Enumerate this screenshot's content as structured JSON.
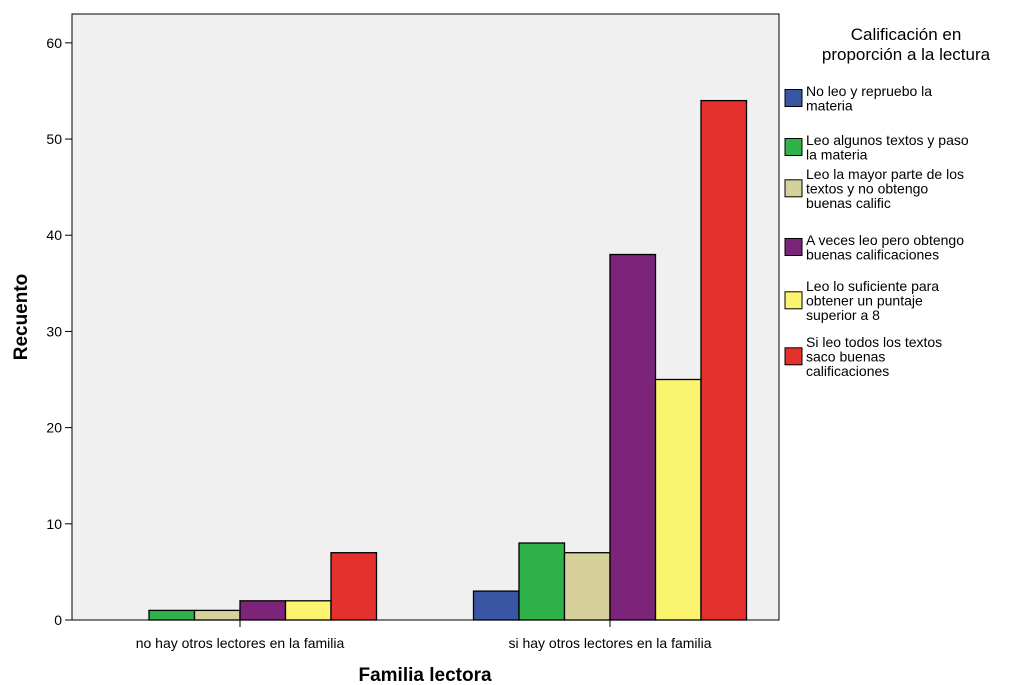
{
  "chart_data": {
    "type": "bar",
    "xlabel": "Familia lectora",
    "ylabel": "Recuento",
    "ylim": [
      0,
      63
    ],
    "yticks": [
      0,
      10,
      20,
      30,
      40,
      50,
      60
    ],
    "categories": [
      "no hay otros lectores en la familia",
      "si hay otros lectores en la familia"
    ],
    "legend": {
      "title_lines": [
        "Calificación en",
        "proporción a la lectura"
      ],
      "placement": "right"
    },
    "series": [
      {
        "name": "No leo y repruebo la materia",
        "label_lines": [
          "No leo y repruebo la",
          "materia"
        ],
        "color": "#3a55a4",
        "values": [
          0,
          3
        ]
      },
      {
        "name": "Leo algunos textos y paso la materia",
        "label_lines": [
          "Leo algunos textos y paso",
          "la materia"
        ],
        "color": "#2fb24a",
        "values": [
          1,
          8
        ]
      },
      {
        "name": "Leo la mayor parte de los textos y no obtengo buenas calific",
        "label_lines": [
          "Leo la mayor parte de los",
          "textos y no obtengo",
          "buenas calific"
        ],
        "color": "#d6d09a",
        "values": [
          1,
          7
        ]
      },
      {
        "name": "A veces leo pero obtengo buenas calificaciones",
        "label_lines": [
          "A veces leo pero obtengo",
          "buenas calificaciones"
        ],
        "color": "#7b2479",
        "values": [
          2,
          38
        ]
      },
      {
        "name": "Leo lo suficiente para obtener un puntaje superior a 8",
        "label_lines": [
          "Leo lo suficiente para",
          "obtener un puntaje",
          "superior a 8"
        ],
        "color": "#faf46e",
        "values": [
          2,
          25
        ]
      },
      {
        "name": "Si leo todos los textos saco buenas calificaciones",
        "label_lines": [
          "Si leo todos los textos",
          "saco buenas",
          "calificaciones"
        ],
        "color": "#e5312e",
        "values": [
          7,
          54
        ]
      }
    ],
    "grid": false,
    "plot_background": "#f0f0f0"
  }
}
